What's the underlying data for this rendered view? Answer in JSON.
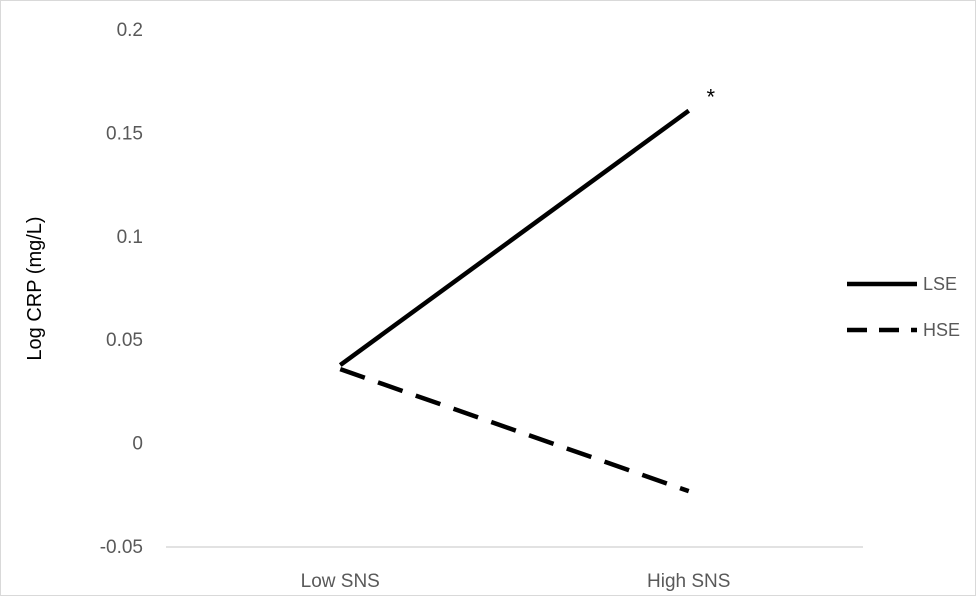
{
  "chart_data": {
    "type": "line",
    "title": "",
    "xlabel": "",
    "ylabel": "Log CRP (mg/L)",
    "categories": [
      "Low SNS",
      "High SNS"
    ],
    "ylim": [
      -0.05,
      0.2
    ],
    "yticks": [
      "0.2",
      "0.15",
      "0.1",
      "0.05",
      "0",
      "-0.05"
    ],
    "ytick_values": [
      0.2,
      0.15,
      0.1,
      0.05,
      0,
      -0.05
    ],
    "grid": false,
    "legend_position": "right",
    "series": [
      {
        "name": "LSE",
        "values": [
          0.038,
          0.161
        ],
        "style": "solid",
        "color": "#000000"
      },
      {
        "name": "HSE",
        "values": [
          0.036,
          -0.023
        ],
        "style": "dashed",
        "color": "#000000"
      }
    ],
    "annotations": [
      {
        "text": "*",
        "series": "LSE",
        "category": "High SNS"
      }
    ]
  }
}
